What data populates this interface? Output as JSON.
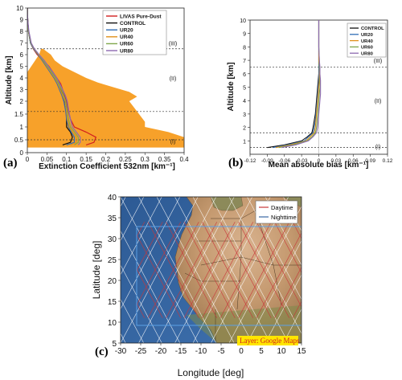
{
  "chart_data": [
    {
      "panel": "(a)",
      "type": "line",
      "xlabel": "Extinction Coefficient 532nm [km⁻¹]",
      "ylabel": "Altitude [km]",
      "xlim": [
        0,
        0.4
      ],
      "ylim": [
        0,
        10
      ],
      "xticks": [
        "0",
        "0.05",
        "0.1",
        "0.15",
        "0.2",
        "0.25",
        "0.3",
        "0.35",
        "0.4"
      ],
      "yticks": [
        "0",
        "0.5",
        "1",
        "1.5",
        "2",
        "3",
        "4",
        "5",
        "6",
        "7",
        "8",
        "9",
        "10"
      ],
      "layer_boundaries": [
        0.5,
        1.6,
        6.5
      ],
      "regions": [
        "(I)",
        "(II)",
        "(III)"
      ],
      "shade": {
        "color": "#f7a12a",
        "altitude": [
          0.2,
          0.4,
          0.6,
          0.8,
          1.0,
          1.2,
          1.6,
          2.0,
          2.4,
          2.8,
          3.2,
          3.6,
          4.0,
          4.5,
          5.0,
          5.5,
          6.0,
          6.5
        ],
        "left": [
          0,
          0,
          0,
          0,
          0,
          0,
          0,
          0,
          0,
          0,
          0,
          0,
          0,
          0,
          0.01,
          0.02,
          0.03,
          0.035
        ],
        "right": [
          0.4,
          0.4,
          0.4,
          0.36,
          0.3,
          0.3,
          0.28,
          0.26,
          0.28,
          0.26,
          0.22,
          0.18,
          0.15,
          0.12,
          0.09,
          0.07,
          0.06,
          0.04
        ]
      },
      "altitude": [
        0.3,
        0.4,
        0.6,
        0.8,
        1.0,
        1.3,
        1.6,
        2.0,
        2.5,
        3.0,
        3.5,
        4.0,
        4.5,
        5.0,
        5.5,
        6.0,
        6.5,
        7.0,
        8.0,
        9.0,
        10.0
      ],
      "series": [
        {
          "name": "LIVAS Pure-Dust",
          "color": "#d11f1f",
          "values": [
            0.15,
            0.17,
            0.175,
            0.15,
            0.12,
            0.11,
            0.105,
            0.1,
            0.095,
            0.09,
            0.085,
            0.075,
            0.065,
            0.055,
            0.04,
            0.025,
            0.015,
            0.008,
            0.003,
            0.001,
            0.0
          ]
        },
        {
          "name": "CONTROL",
          "color": "#111111",
          "values": [
            0.09,
            0.11,
            0.115,
            0.11,
            0.1,
            0.1,
            0.1,
            0.095,
            0.09,
            0.085,
            0.08,
            0.07,
            0.06,
            0.05,
            0.04,
            0.028,
            0.016,
            0.008,
            0.003,
            0.001,
            0.0
          ]
        },
        {
          "name": "UR20",
          "color": "#2f6db5",
          "values": [
            0.1,
            0.12,
            0.12,
            0.112,
            0.105,
            0.1,
            0.098,
            0.093,
            0.088,
            0.082,
            0.076,
            0.068,
            0.058,
            0.048,
            0.038,
            0.027,
            0.016,
            0.008,
            0.003,
            0.001,
            0.0
          ]
        },
        {
          "name": "UR40",
          "color": "#e0901b",
          "values": [
            0.11,
            0.125,
            0.125,
            0.115,
            0.107,
            0.102,
            0.1,
            0.096,
            0.09,
            0.084,
            0.078,
            0.07,
            0.06,
            0.05,
            0.04,
            0.028,
            0.017,
            0.009,
            0.003,
            0.001,
            0.0
          ]
        },
        {
          "name": "UR60",
          "color": "#7fa64a",
          "values": [
            0.12,
            0.13,
            0.13,
            0.12,
            0.11,
            0.105,
            0.102,
            0.098,
            0.093,
            0.087,
            0.08,
            0.072,
            0.062,
            0.052,
            0.041,
            0.029,
            0.017,
            0.009,
            0.003,
            0.001,
            0.0
          ]
        },
        {
          "name": "UR80",
          "color": "#8d6ab0",
          "values": [
            0.13,
            0.135,
            0.135,
            0.125,
            0.115,
            0.11,
            0.106,
            0.102,
            0.097,
            0.09,
            0.083,
            0.075,
            0.065,
            0.054,
            0.043,
            0.03,
            0.018,
            0.01,
            0.004,
            0.001,
            0.0
          ]
        }
      ]
    },
    {
      "panel": "(b)",
      "type": "line",
      "xlabel": "Mean absolute bias [km⁻¹]",
      "ylabel": "Altitude [km]",
      "xlim": [
        -0.12,
        0.12
      ],
      "ylim": [
        0,
        10
      ],
      "xticks": [
        "-0.12",
        "-0.09",
        "-0.06",
        "-0.03",
        "0",
        "0.03",
        "0.06",
        "0.09",
        "0.12"
      ],
      "yticks": [
        "1",
        "2",
        "3",
        "4",
        "5",
        "6",
        "7",
        "8",
        "9",
        "10"
      ],
      "layer_boundaries": [
        0.5,
        1.6,
        6.5
      ],
      "regions": [
        "(I)",
        "(II)",
        "(III)"
      ],
      "altitude": [
        0.5,
        0.7,
        1.0,
        1.3,
        1.6,
        2.0,
        2.5,
        3.0,
        3.5,
        4.0,
        4.5,
        5.0,
        5.5,
        6.0,
        6.5,
        7.0,
        8.0,
        9.0,
        10.0
      ],
      "series": [
        {
          "name": "CONTROL",
          "color": "#111111",
          "values": [
            -0.09,
            -0.06,
            -0.03,
            -0.02,
            -0.012,
            -0.01,
            -0.008,
            -0.006,
            -0.005,
            -0.004,
            -0.003,
            -0.002,
            -0.001,
            0.0,
            0.0,
            0.0,
            0.0,
            0.0,
            0.0
          ]
        },
        {
          "name": "UR20",
          "color": "#2f6db5",
          "values": [
            -0.08,
            -0.055,
            -0.025,
            -0.018,
            -0.01,
            -0.008,
            -0.006,
            -0.005,
            -0.004,
            -0.003,
            -0.002,
            -0.001,
            0.0,
            0.0,
            0.0,
            0.0,
            0.0,
            0.0,
            0.0
          ]
        },
        {
          "name": "UR40",
          "color": "#e0901b",
          "values": [
            -0.075,
            -0.05,
            -0.022,
            -0.015,
            -0.008,
            -0.006,
            -0.005,
            -0.004,
            -0.003,
            -0.002,
            -0.001,
            0.0,
            0.001,
            0.001,
            0.001,
            0.0,
            0.0,
            0.0,
            0.0
          ]
        },
        {
          "name": "UR60",
          "color": "#7fa64a",
          "values": [
            -0.07,
            -0.045,
            -0.02,
            -0.012,
            -0.006,
            -0.004,
            -0.003,
            -0.002,
            -0.001,
            0.0,
            0.001,
            0.002,
            0.002,
            0.002,
            0.001,
            0.001,
            0.0,
            0.0,
            0.0
          ]
        },
        {
          "name": "UR80",
          "color": "#8d6ab0",
          "values": [
            -0.065,
            -0.04,
            -0.018,
            -0.01,
            -0.004,
            -0.002,
            -0.001,
            0.0,
            0.001,
            0.002,
            0.003,
            0.003,
            0.003,
            0.002,
            0.002,
            0.001,
            0.0,
            0.0,
            0.0
          ]
        }
      ]
    },
    {
      "panel": "(c)",
      "type": "map",
      "xlabel": "Longitude [deg]",
      "ylabel": "Latitude [deg]",
      "xlim": [
        -30,
        15
      ],
      "ylim": [
        5,
        40
      ],
      "xticks": [
        "-30",
        "-25",
        "-20",
        "-15",
        "-10",
        "-5",
        "0",
        "5",
        "10",
        "15"
      ],
      "yticks": [
        "5",
        "10",
        "15",
        "20",
        "25",
        "30",
        "35",
        "40"
      ],
      "domain_box": {
        "lon": [
          -26,
          15
        ],
        "lat": [
          11,
          34
        ]
      },
      "legend": [
        {
          "name": "Daytime",
          "color": "#c8373a"
        },
        {
          "name": "Nighttime",
          "color": "#ffffff"
        }
      ],
      "layer_label": "Layer: Google Maps",
      "colors": {
        "ocean": "#3a67a3",
        "land": "#c9a27d",
        "box": "#5aa0e6",
        "layer_bg": "#ffe600"
      }
    }
  ]
}
